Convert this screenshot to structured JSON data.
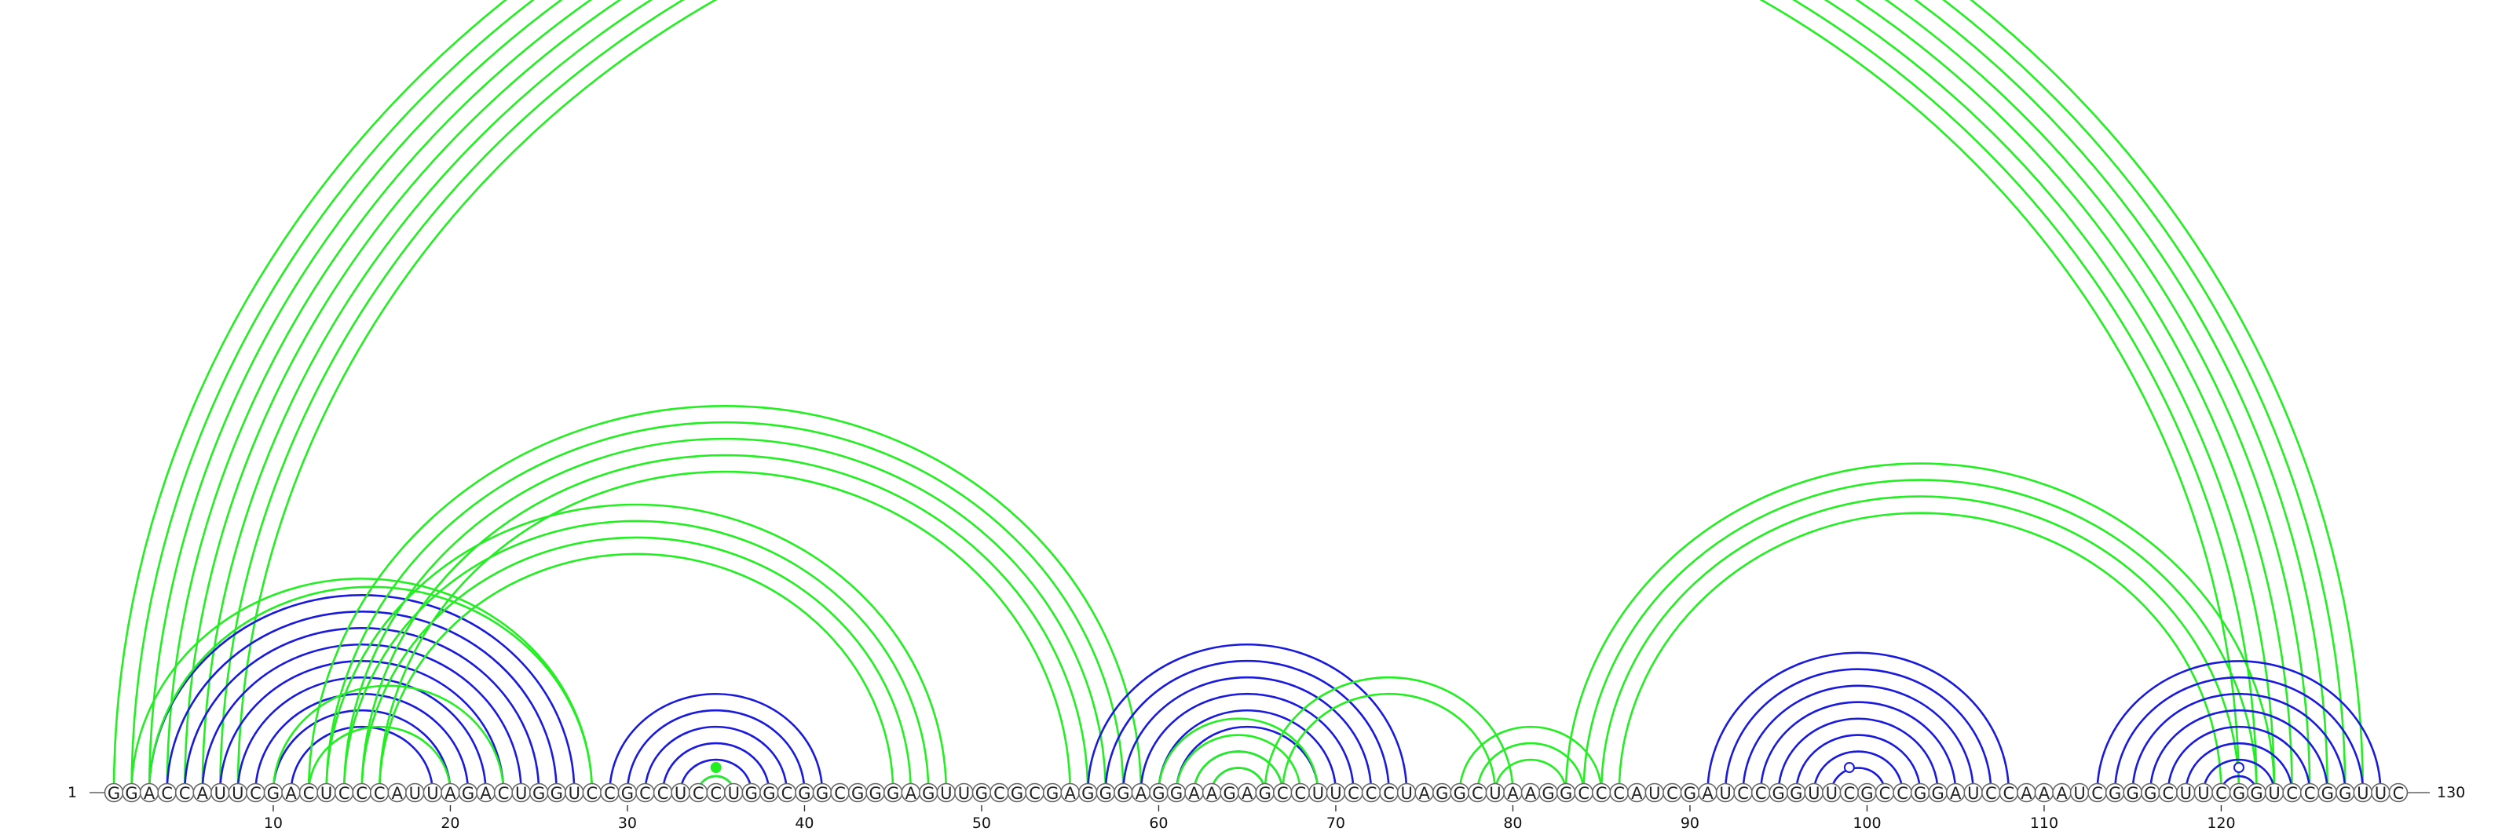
{
  "sequence": "GGACCAUUCGACUCCCAUUAGACUGGUCCGCCUCCUGGCGGCGGGAGUUGCGCGAGGGAGGAAGAGCCUUCCCUAGGCUAAGGCCCAUCGAUCCGGUUCGCCGGAUCCAAAUCGGGCUUCGGUCCGGUUC",
  "start_label": "1",
  "end_label": "130",
  "ticks": [
    "10",
    "20",
    "30",
    "40",
    "50",
    "60",
    "70",
    "80",
    "90",
    "100",
    "110",
    "120"
  ],
  "colors": {
    "blue": "#1a1adc",
    "green": "#22ee22"
  },
  "upper_pairs": [
    {
      "color": "green",
      "pairs": [
        [
          1,
          128
        ],
        [
          2,
          127
        ],
        [
          3,
          126
        ],
        [
          4,
          125
        ],
        [
          5,
          124
        ],
        [
          6,
          123
        ],
        [
          7,
          122
        ],
        [
          8,
          121
        ]
      ]
    },
    {
      "color": "blue",
      "pairs": [
        [
          3,
          27
        ],
        [
          4,
          26
        ],
        [
          5,
          25
        ],
        [
          6,
          24
        ],
        [
          7,
          23
        ],
        [
          8,
          22
        ],
        [
          9,
          21
        ],
        [
          10,
          20
        ],
        [
          11,
          19
        ]
      ]
    },
    {
      "color": "green",
      "pairs": [
        [
          2,
          28
        ],
        [
          3,
          28
        ],
        [
          10,
          23
        ],
        [
          12,
          20
        ]
      ]
    },
    {
      "color": "green",
      "pairs": [
        [
          12,
          59
        ],
        [
          13,
          58
        ],
        [
          14,
          57
        ],
        [
          15,
          56
        ],
        [
          16,
          55
        ]
      ]
    },
    {
      "color": "green",
      "pairs": [
        [
          13,
          48
        ],
        [
          14,
          47
        ],
        [
          15,
          46
        ],
        [
          16,
          45
        ]
      ]
    },
    {
      "color": "blue",
      "pairs": [
        [
          29,
          41
        ],
        [
          30,
          40
        ],
        [
          31,
          39
        ],
        [
          32,
          38
        ],
        [
          33,
          37
        ],
        [
          34,
          36
        ]
      ]
    },
    {
      "color": "green",
      "pairs": [
        [
          34,
          36
        ]
      ]
    },
    {
      "color": "blue",
      "pairs": [
        [
          56,
          74
        ],
        [
          57,
          73
        ],
        [
          58,
          72
        ],
        [
          59,
          71
        ],
        [
          60,
          70
        ],
        [
          61,
          69
        ],
        [
          62,
          67
        ],
        [
          63,
          66
        ]
      ]
    },
    {
      "color": "green",
      "pairs": [
        [
          60,
          69
        ],
        [
          61,
          68
        ],
        [
          62,
          67
        ],
        [
          63,
          66
        ]
      ]
    },
    {
      "color": "green",
      "pairs": [
        [
          66,
          80
        ],
        [
          67,
          79
        ]
      ]
    },
    {
      "color": "green",
      "pairs": [
        [
          77,
          85
        ],
        [
          78,
          84
        ],
        [
          79,
          83
        ]
      ]
    },
    {
      "color": "green",
      "pairs": [
        [
          83,
          123
        ],
        [
          84,
          122
        ],
        [
          85,
          121
        ],
        [
          86,
          120
        ]
      ]
    },
    {
      "color": "blue",
      "pairs": [
        [
          91,
          108
        ],
        [
          92,
          107
        ],
        [
          93,
          106
        ],
        [
          94,
          105
        ],
        [
          95,
          104
        ],
        [
          96,
          103
        ],
        [
          97,
          102
        ],
        [
          98,
          101
        ]
      ]
    },
    {
      "color": "blue",
      "pairs": [
        [
          113,
          129
        ],
        [
          114,
          128
        ],
        [
          115,
          127
        ],
        [
          116,
          126
        ],
        [
          117,
          125
        ],
        [
          118,
          124
        ],
        [
          119,
          123
        ],
        [
          120,
          122
        ]
      ]
    }
  ],
  "markers": [
    {
      "pos": 35,
      "color": "green",
      "filled": true
    },
    {
      "pos": 99,
      "color": "blue",
      "filled": false
    },
    {
      "pos": 121,
      "color": "blue",
      "filled": false
    }
  ]
}
